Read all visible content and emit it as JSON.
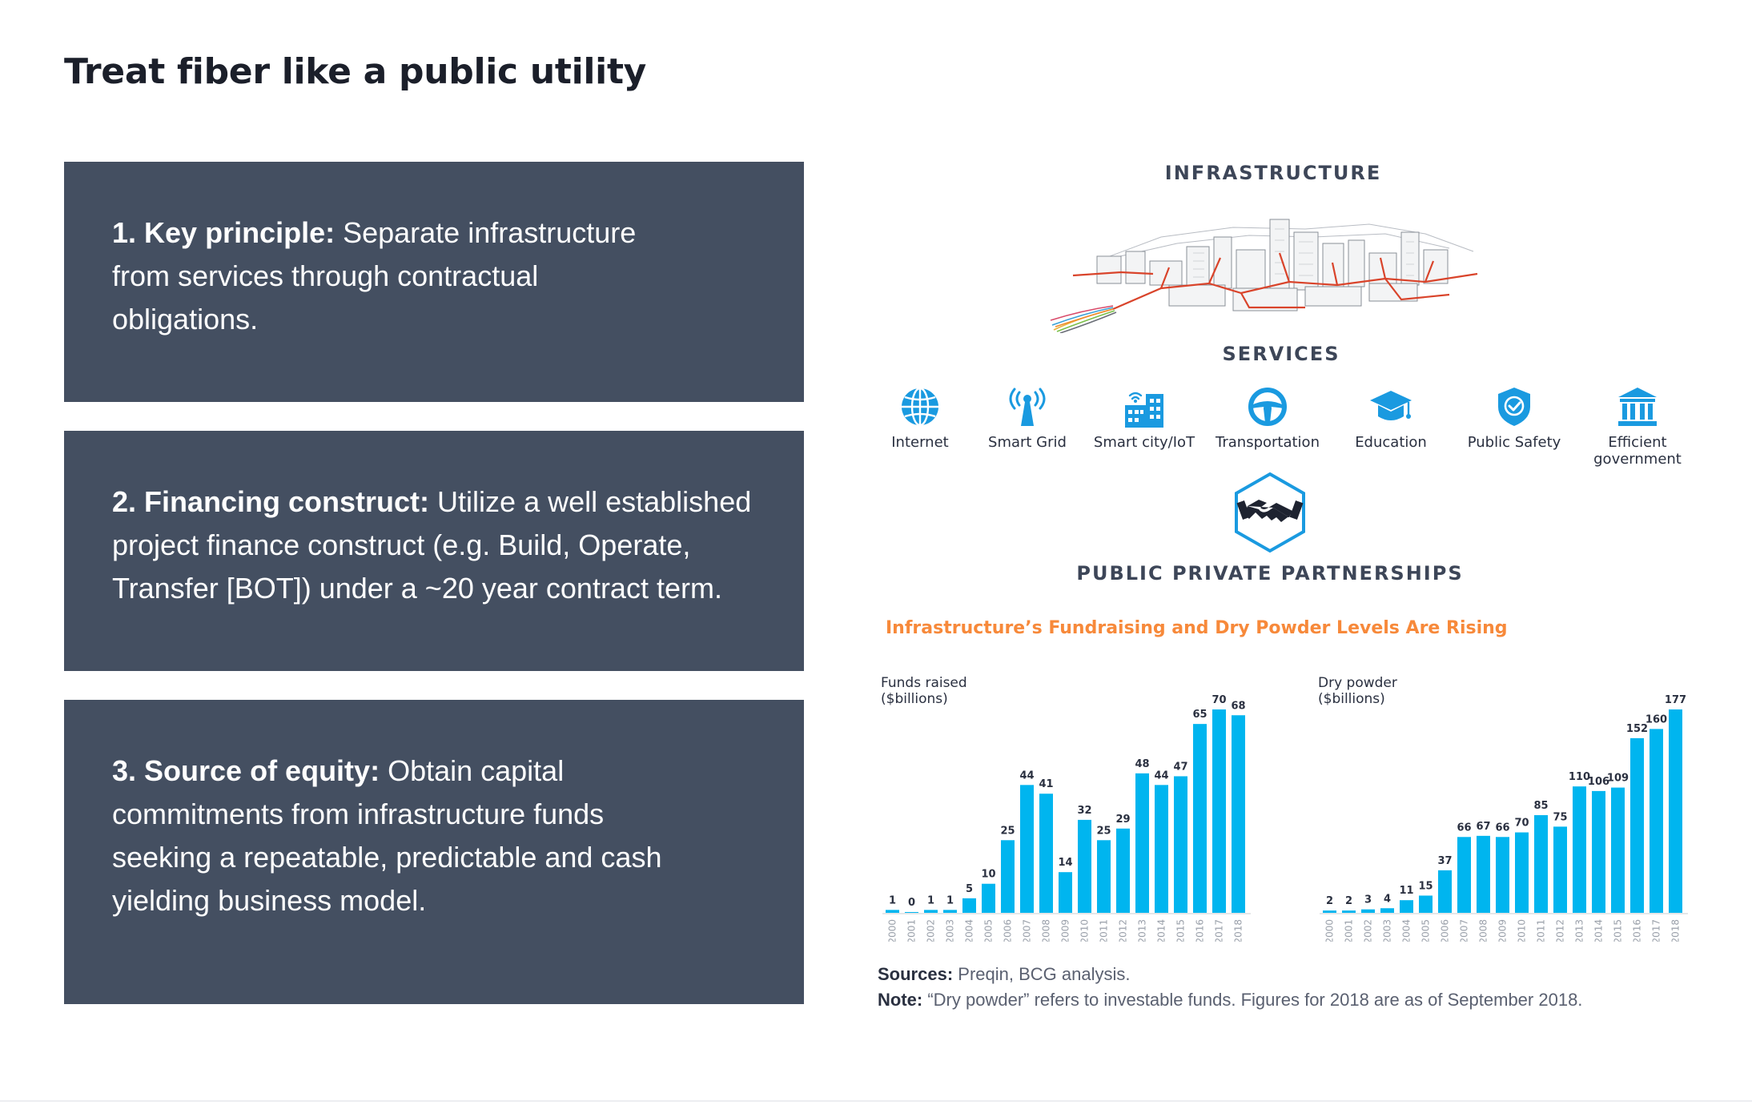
{
  "title": "Treat fiber like a public utility",
  "cards": [
    {
      "lead": "1. Key principle:",
      "text": " Separate infrastructure from services through contractual obligations."
    },
    {
      "lead": "2. Financing construct:",
      "text": " Utilize a well established project finance construct (e.g. Build, Operate, Transfer [BOT]) under a ~20 year contract term."
    },
    {
      "lead": "3. Source of equity:",
      "text": " Obtain capital commitments from infrastructure funds seeking a repeatable, predictable and cash yielding business model."
    }
  ],
  "diagram": {
    "infrastructure_heading": "INFRASTRUCTURE",
    "services_heading": "SERVICES",
    "services": [
      {
        "label": "Internet",
        "icon": "globe-icon"
      },
      {
        "label": "Smart Grid",
        "icon": "antenna-icon"
      },
      {
        "label": "Smart city/IoT",
        "icon": "buildings-icon"
      },
      {
        "label": "Transportation",
        "icon": "steering-wheel-icon"
      },
      {
        "label": "Education",
        "icon": "graduation-cap-icon"
      },
      {
        "label": "Public Safety",
        "icon": "shield-check-icon"
      },
      {
        "label": "Efficient government",
        "icon": "government-building-icon"
      }
    ],
    "ppp_heading": "PUBLIC PRIVATE PARTNERSHIPS",
    "ppp_icon": "handshake-icon"
  },
  "colors": {
    "bar": "#00b5ef",
    "card_bg": "#444f61",
    "chart_title": "#f7893a",
    "fiber": "#d9442b"
  },
  "chart_title": "Infrastructure’s Fundraising and Dry Powder Levels Are Rising",
  "chart_data": [
    {
      "type": "bar",
      "ylabel": "Funds raised\n($billions)",
      "categories": [
        "2000",
        "2001",
        "2002",
        "2003",
        "2004",
        "2005",
        "2006",
        "2007",
        "2008",
        "2009",
        "2010",
        "2011",
        "2012",
        "2013",
        "2014",
        "2015",
        "2016",
        "2017",
        "2018"
      ],
      "values": [
        1,
        0,
        1,
        1,
        5,
        10,
        25,
        44,
        41,
        14,
        32,
        25,
        29,
        48,
        44,
        47,
        65,
        70,
        68
      ],
      "ylim": [
        0,
        70
      ],
      "data_labels": true,
      "grid": false
    },
    {
      "type": "bar",
      "ylabel": "Dry powder\n($billions)",
      "categories": [
        "2000",
        "2001",
        "2002",
        "2003",
        "2004",
        "2005",
        "2006",
        "2007",
        "2008",
        "2009",
        "2010",
        "2011",
        "2012",
        "2013",
        "2014",
        "2015",
        "2016",
        "2017",
        "2018"
      ],
      "values": [
        2,
        2,
        3,
        4,
        11,
        15,
        37,
        66,
        67,
        66,
        70,
        85,
        75,
        110,
        106,
        109,
        152,
        160,
        177
      ],
      "ylim": [
        0,
        177
      ],
      "data_labels": true,
      "grid": false
    }
  ],
  "sources": {
    "label": "Sources:",
    "text": " Preqin, BCG analysis."
  },
  "note": {
    "label": "Note:",
    "text": " “Dry powder” refers to investable funds. Figures for 2018 are as of September 2018."
  }
}
